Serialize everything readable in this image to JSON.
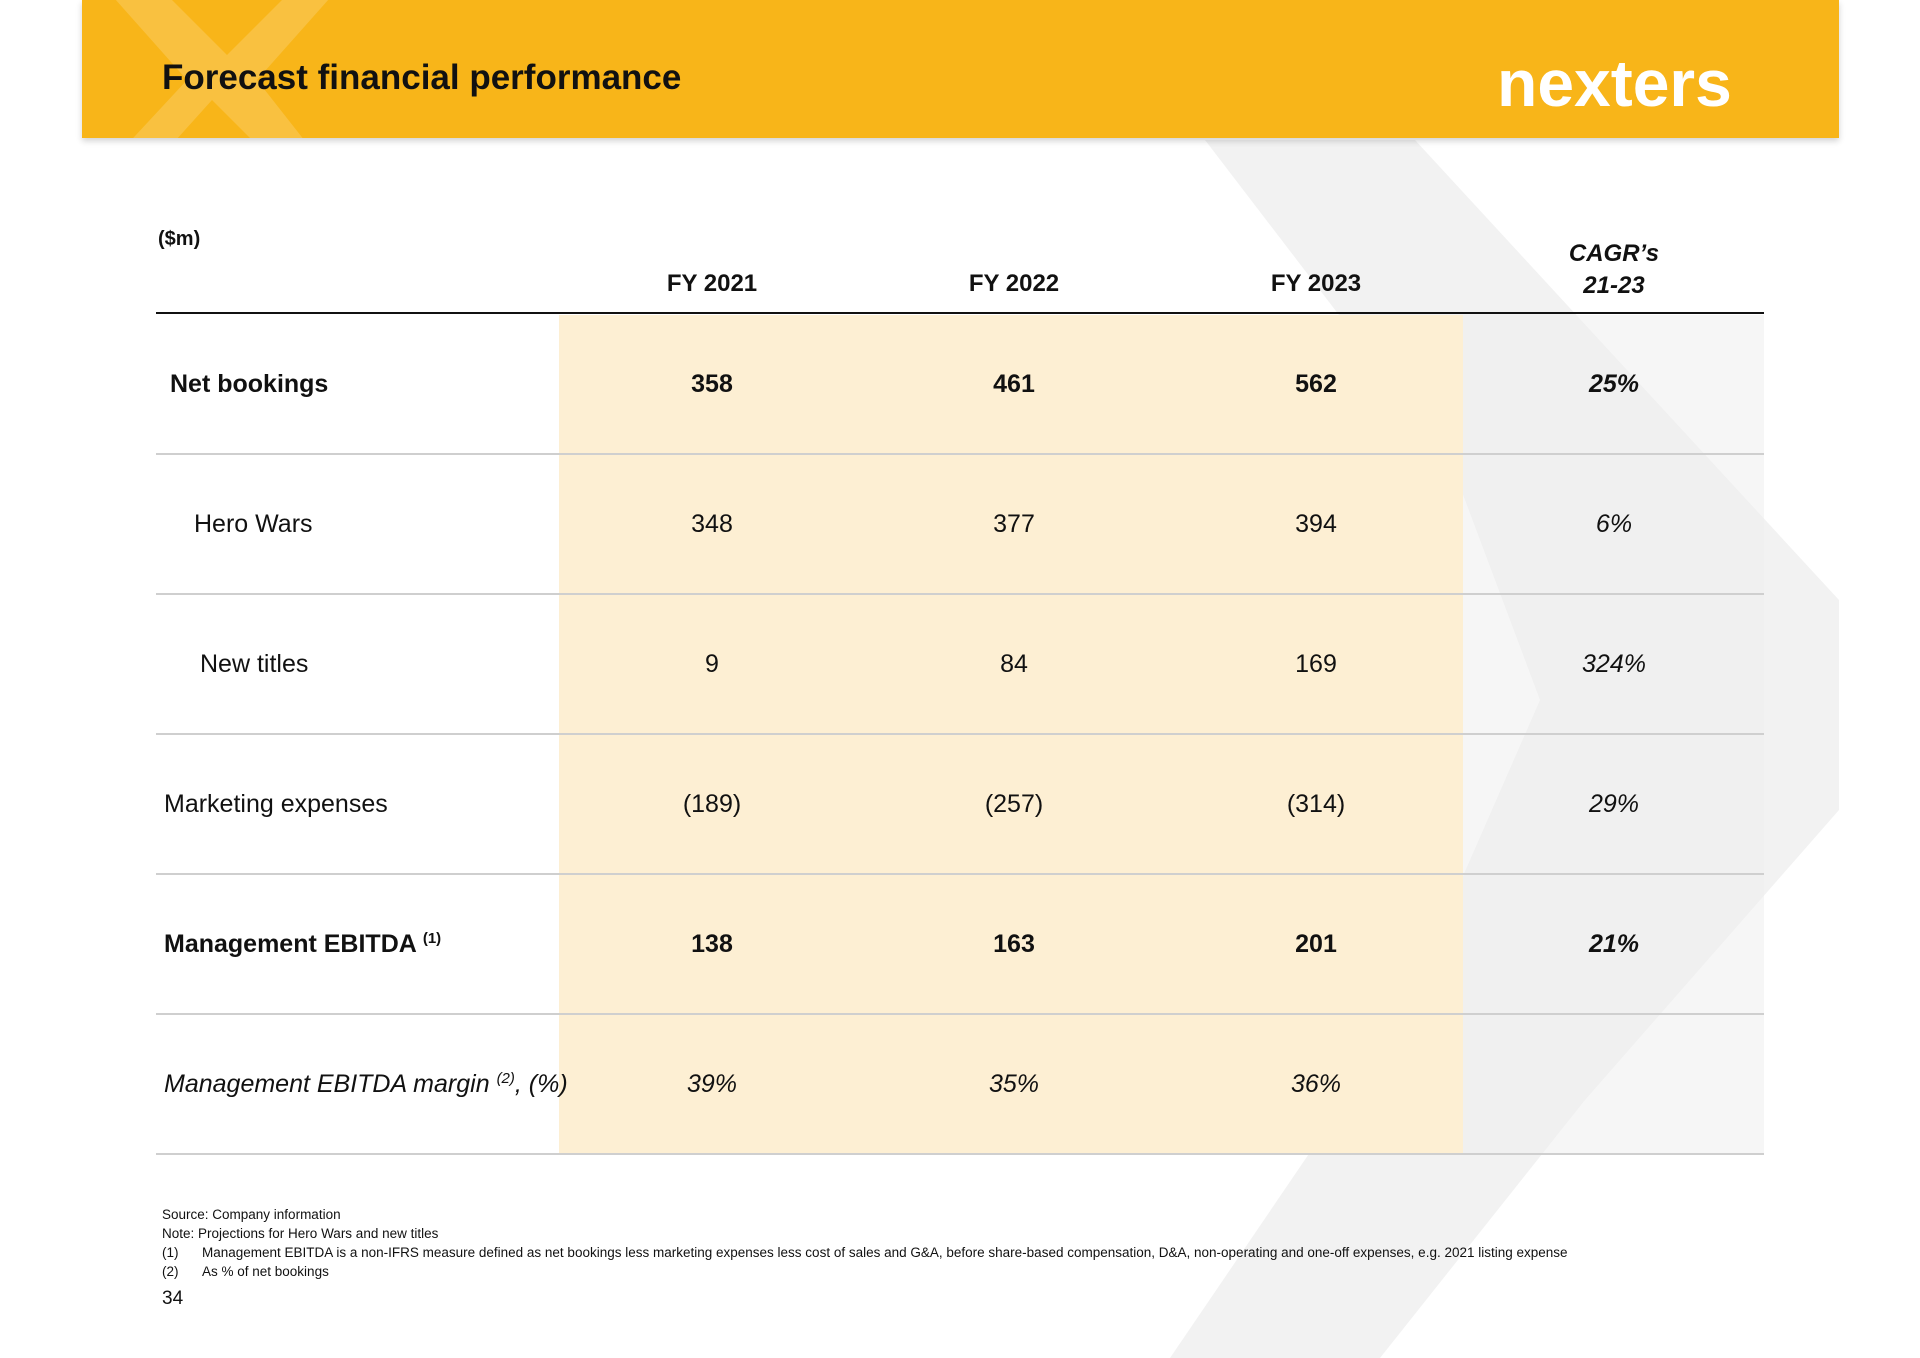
{
  "header": {
    "title": "Forecast financial performance",
    "logo_text": "nexters",
    "accent_color": "#F8B519"
  },
  "table": {
    "unit_label": "($m)",
    "columns": [
      "FY 2021",
      "FY 2022",
      "FY 2023"
    ],
    "cagr_header": [
      "CAGR’s",
      "21-23"
    ],
    "rows": [
      {
        "label": "Net bookings",
        "values": [
          "358",
          "461",
          "562"
        ],
        "cagr": "25%"
      },
      {
        "label": "Hero Wars",
        "values": [
          "348",
          "377",
          "394"
        ],
        "cagr": "6%"
      },
      {
        "label": "New titles",
        "values": [
          "9",
          "84",
          "169"
        ],
        "cagr": "324%"
      },
      {
        "label": "Marketing expenses",
        "values": [
          "(189)",
          "(257)",
          "(314)"
        ],
        "cagr": "29%"
      },
      {
        "label": "Management EBITDA",
        "sup": "(1)",
        "values": [
          "138",
          "163",
          "201"
        ],
        "cagr": "21%"
      },
      {
        "label": "Management EBITDA margin",
        "sup": "(2)",
        "suffix": ", (%)",
        "values": [
          "39%",
          "35%",
          "36%"
        ],
        "cagr": ""
      }
    ]
  },
  "notes": {
    "source": "Source: Company information",
    "note": "Note: Projections for Hero Wars and new titles",
    "footnotes": [
      {
        "num": "(1)",
        "text": "Management EBITDA is a non-IFRS measure defined as net bookings less marketing expenses less cost of sales and G&A, before share-based compensation, D&A, non-operating and one-off expenses, e.g. 2021 listing expense"
      },
      {
        "num": "(2)",
        "text": "As % of net bookings"
      }
    ]
  },
  "page_number": "34"
}
